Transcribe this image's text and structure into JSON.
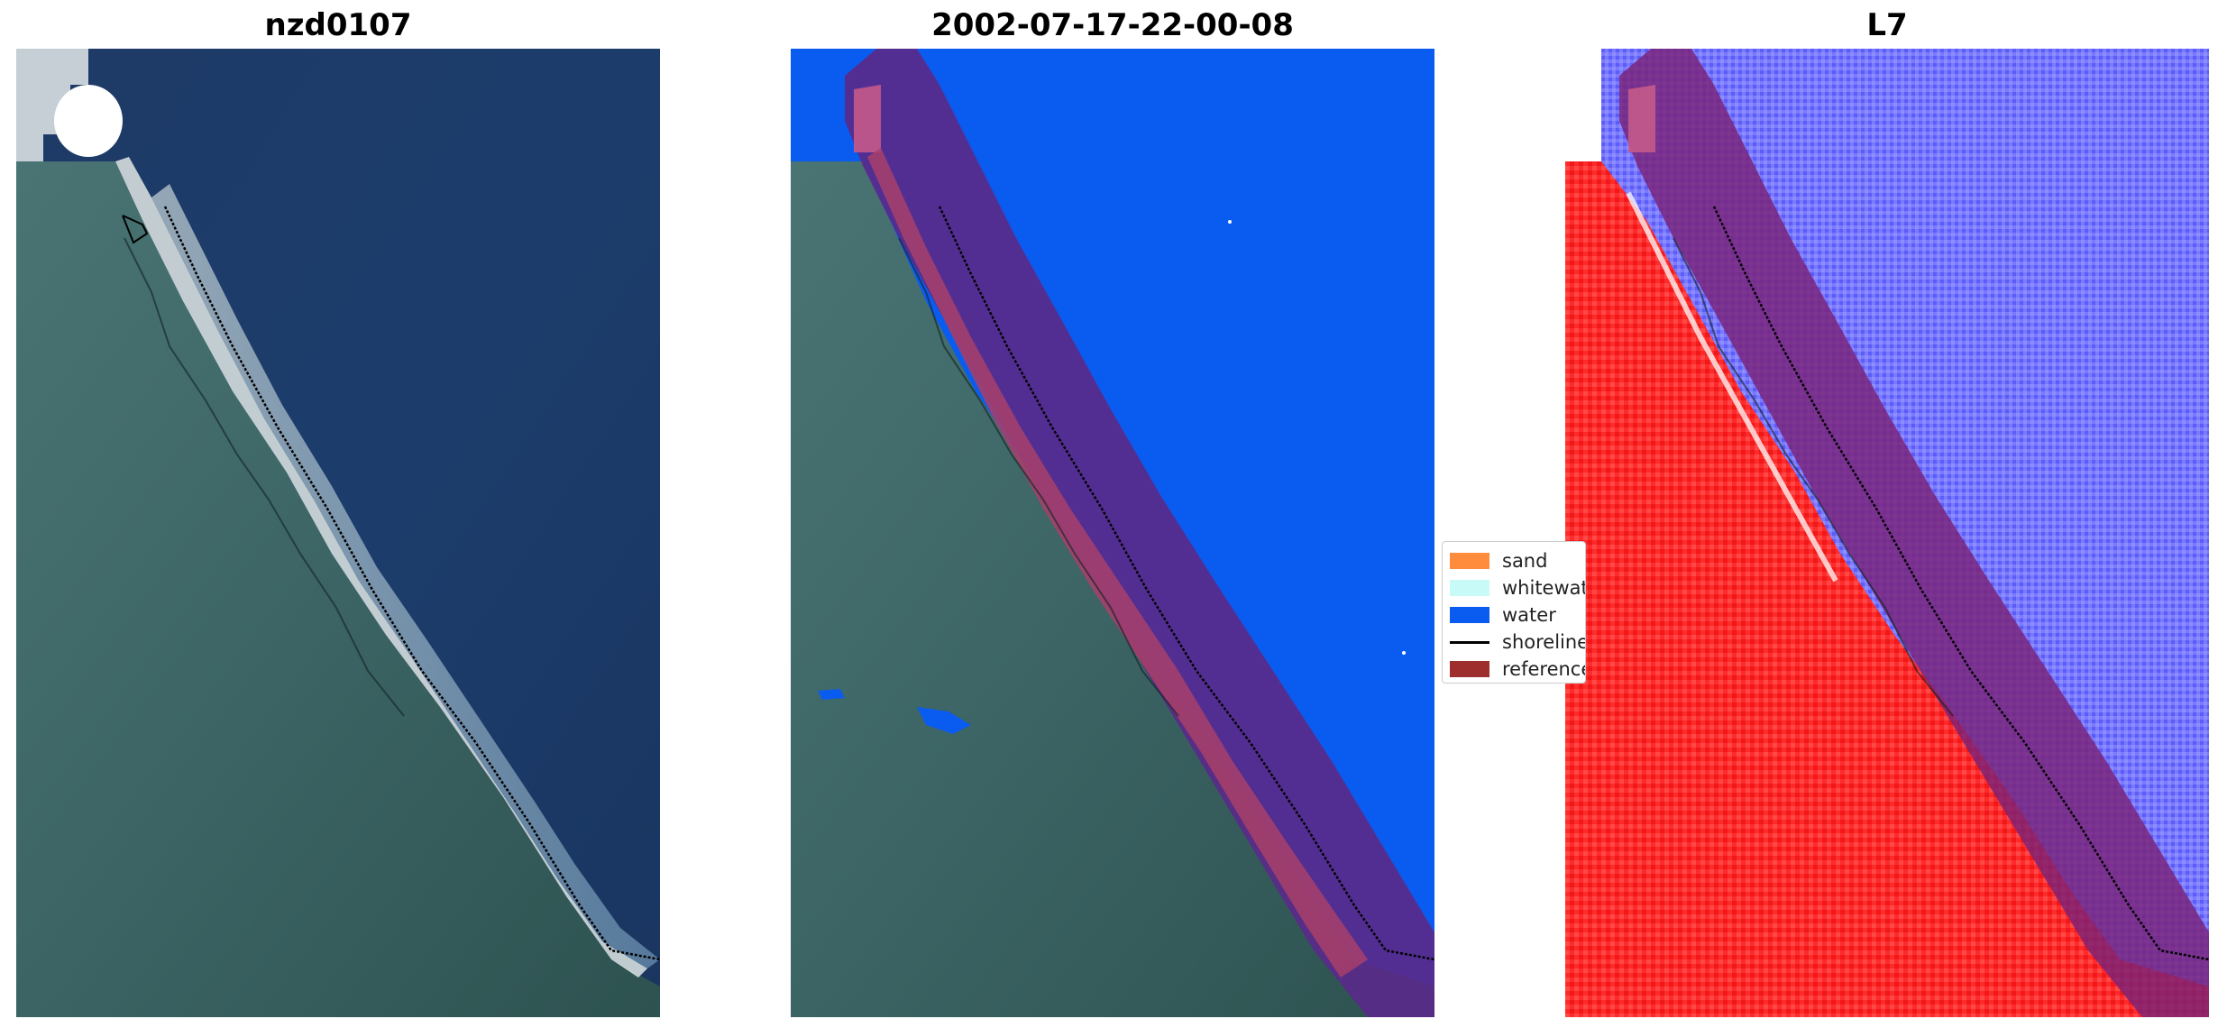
{
  "panels": [
    {
      "title": "nzd0107",
      "kind": "rgb"
    },
    {
      "title": "2002-07-17-22-00-08",
      "kind": "classification"
    },
    {
      "title": "L7",
      "kind": "mndwi"
    }
  ],
  "legend": {
    "items": [
      {
        "label": "sand",
        "color": "#ff8c3d",
        "type": "patch"
      },
      {
        "label": "whitewater",
        "color": "#c8fbf7",
        "type": "patch"
      },
      {
        "label": "water",
        "color": "#0a5cf0",
        "type": "patch"
      },
      {
        "label": "shoreline",
        "color": "#000000",
        "type": "line"
      },
      {
        "label": "reference",
        "color": "#9e2d2d",
        "type": "patch"
      }
    ]
  },
  "colors": {
    "ocean": "#1d3f6e",
    "land": "#3f6a6a",
    "water_class": "#0a5cf0",
    "buffer": "#5a2a8a",
    "mndwi_land": "#ff2020",
    "mndwi_water": "#6464ff"
  }
}
